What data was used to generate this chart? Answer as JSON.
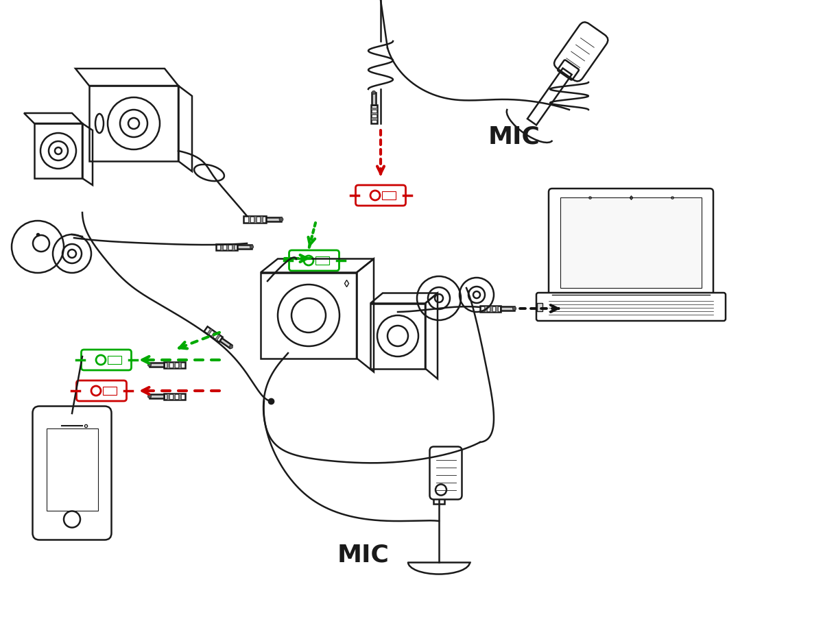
{
  "background_color": "#ffffff",
  "line_color": "#1a1a1a",
  "green_color": "#00aa00",
  "red_color": "#cc0000",
  "black_color": "#111111",
  "mic_label_1": "MIC",
  "mic_label_2": "MIC",
  "fig_width": 12.0,
  "fig_height": 9.0,
  "dpi": 100,
  "xlim": [
    0,
    1200
  ],
  "ylim": [
    0,
    900
  ]
}
